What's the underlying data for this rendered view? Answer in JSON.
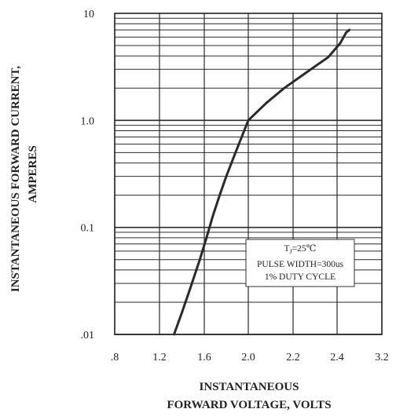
{
  "chart_data": {
    "type": "line",
    "xscale": "linear",
    "yscale": "log",
    "xlim": [
      0.8,
      3.2
    ],
    "ylim": [
      0.01,
      10
    ],
    "x_ticks": [
      ".8",
      "1.2",
      "1.6",
      "2.0",
      "2.2",
      "2.4",
      "3.2"
    ],
    "x_tick_values": [
      0.8,
      1.2,
      1.6,
      2.0,
      2.2,
      2.4,
      3.2
    ],
    "y_ticks": [
      "10",
      "1.0",
      "0.1",
      ".01"
    ],
    "y_tick_values": [
      10,
      1,
      0.1,
      0.01
    ],
    "xlabel_lines": [
      "INSTANTANEOUS",
      "FORWARD VOLTAGE, VOLTS"
    ],
    "ylabel_lines": [
      "INSTANTANEOUS FORWARD CURRENT,",
      "AMPERES"
    ],
    "grid": true,
    "annotation": {
      "temp_prefix": "T",
      "temp_subscript": "J",
      "temp_suffix": "=25℃",
      "pulse": "PULSE WIDTH=300us",
      "duty": "1% DUTY CYCLE"
    },
    "series": [
      {
        "x": [
          1.33,
          1.4,
          1.48,
          1.56,
          1.62,
          1.68,
          1.74,
          1.8,
          1.87,
          1.94,
          2.0,
          2.08,
          2.16,
          2.26,
          2.36,
          2.46,
          2.56,
          2.62
        ],
        "y": [
          0.01,
          0.016,
          0.028,
          0.05,
          0.08,
          0.13,
          0.2,
          0.3,
          0.46,
          0.7,
          1.0,
          1.45,
          2.0,
          2.8,
          3.9,
          5.3,
          6.6,
          7.0
        ],
        "color": "#2a2a2a"
      }
    ]
  }
}
